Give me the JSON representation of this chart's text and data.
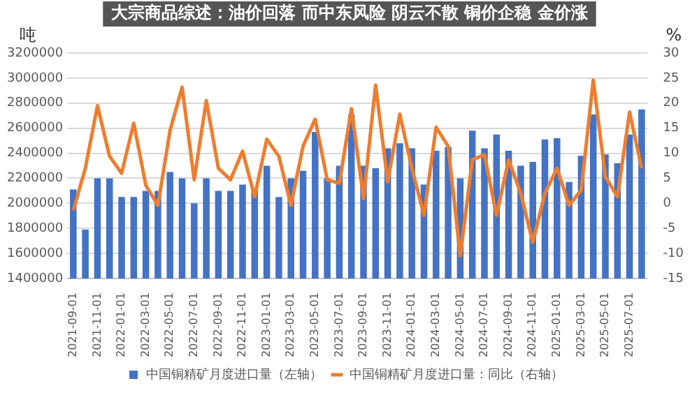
{
  "chart_data": {
    "type": "bar",
    "title": "大宗商品综述：油价回落 而中东风险 阴云不散 铜价企稳 金价涨",
    "ylabel": "吨",
    "y2label": "%",
    "categories": [
      "2021-09-01",
      null,
      "2021-11-01",
      null,
      "2022-01-01",
      null,
      "2022-03-01",
      null,
      "2022-05-01",
      null,
      "2022-07-01",
      null,
      "2022-09-01",
      null,
      "2022-11-01",
      null,
      "2023-01-01",
      null,
      "2023-03-01",
      null,
      "2023-05-01",
      null,
      "2023-07-01",
      null,
      "2023-09-01",
      null,
      "2023-11-01",
      null,
      "2024-01-01",
      null,
      "2024-03-01",
      null,
      "2024-05-01",
      null,
      "2024-07-01",
      null,
      "2024-09-01",
      null,
      "2024-11-01",
      null,
      "2025-01-01",
      null,
      "2025-03-01",
      null,
      "2025-05-01",
      null,
      "2025-07-01",
      null
    ],
    "series": [
      {
        "name": "中国铜精矿月度进口量（左轴）",
        "color": "#4472c4",
        "values": [
          2110000,
          1790000,
          2200000,
          2200000,
          2050000,
          2050000,
          2100000,
          2100000,
          2250000,
          2200000,
          2000000,
          2200000,
          2100000,
          2100000,
          2150000,
          2100000,
          2300000,
          2050000,
          2200000,
          2260000,
          2570000,
          2200000,
          2300000,
          2710000,
          2300000,
          2280000,
          2440000,
          2480000,
          2440000,
          2150000,
          2420000,
          2450000,
          2200000,
          2580000,
          2440000,
          2550000,
          2420000,
          2300000,
          2330000,
          2510000,
          2520000,
          2170000,
          2380000,
          2710000,
          2390000,
          2320000,
          2550000,
          2750000
        ]
      },
      {
        "name": "中国铜精矿月度进口量：同比（右轴）",
        "type": "line",
        "axis": "y2",
        "color": "#ed7d31",
        "values": [
          -1.4,
          7,
          19.5,
          9.4,
          6,
          16,
          3.6,
          -0.4,
          14.5,
          23.2,
          4.7,
          20.5,
          7,
          4.7,
          10.4,
          1.3,
          12.8,
          9.4,
          -0.4,
          11.4,
          16.8,
          4.7,
          4,
          18.9,
          1,
          23.6,
          4.3,
          17.8,
          7,
          -2.4,
          15.2,
          11.4,
          -10.5,
          8.7,
          9.7,
          -2.4,
          8.7,
          2,
          -7.8,
          2,
          7,
          -0.4,
          2.6,
          24.6,
          5.3,
          1.3,
          18.2,
          7
        ]
      }
    ],
    "ylim": [
      1400000,
      3200000
    ],
    "yticks": [
      1400000,
      1600000,
      1800000,
      2000000,
      2200000,
      2400000,
      2600000,
      2800000,
      3000000,
      3200000
    ],
    "y2lim": [
      -15,
      30
    ],
    "y2ticks": [
      -15,
      -10,
      -5,
      0,
      5,
      10,
      15,
      20,
      25,
      30
    ],
    "grid": "y",
    "legend": "bottom"
  }
}
